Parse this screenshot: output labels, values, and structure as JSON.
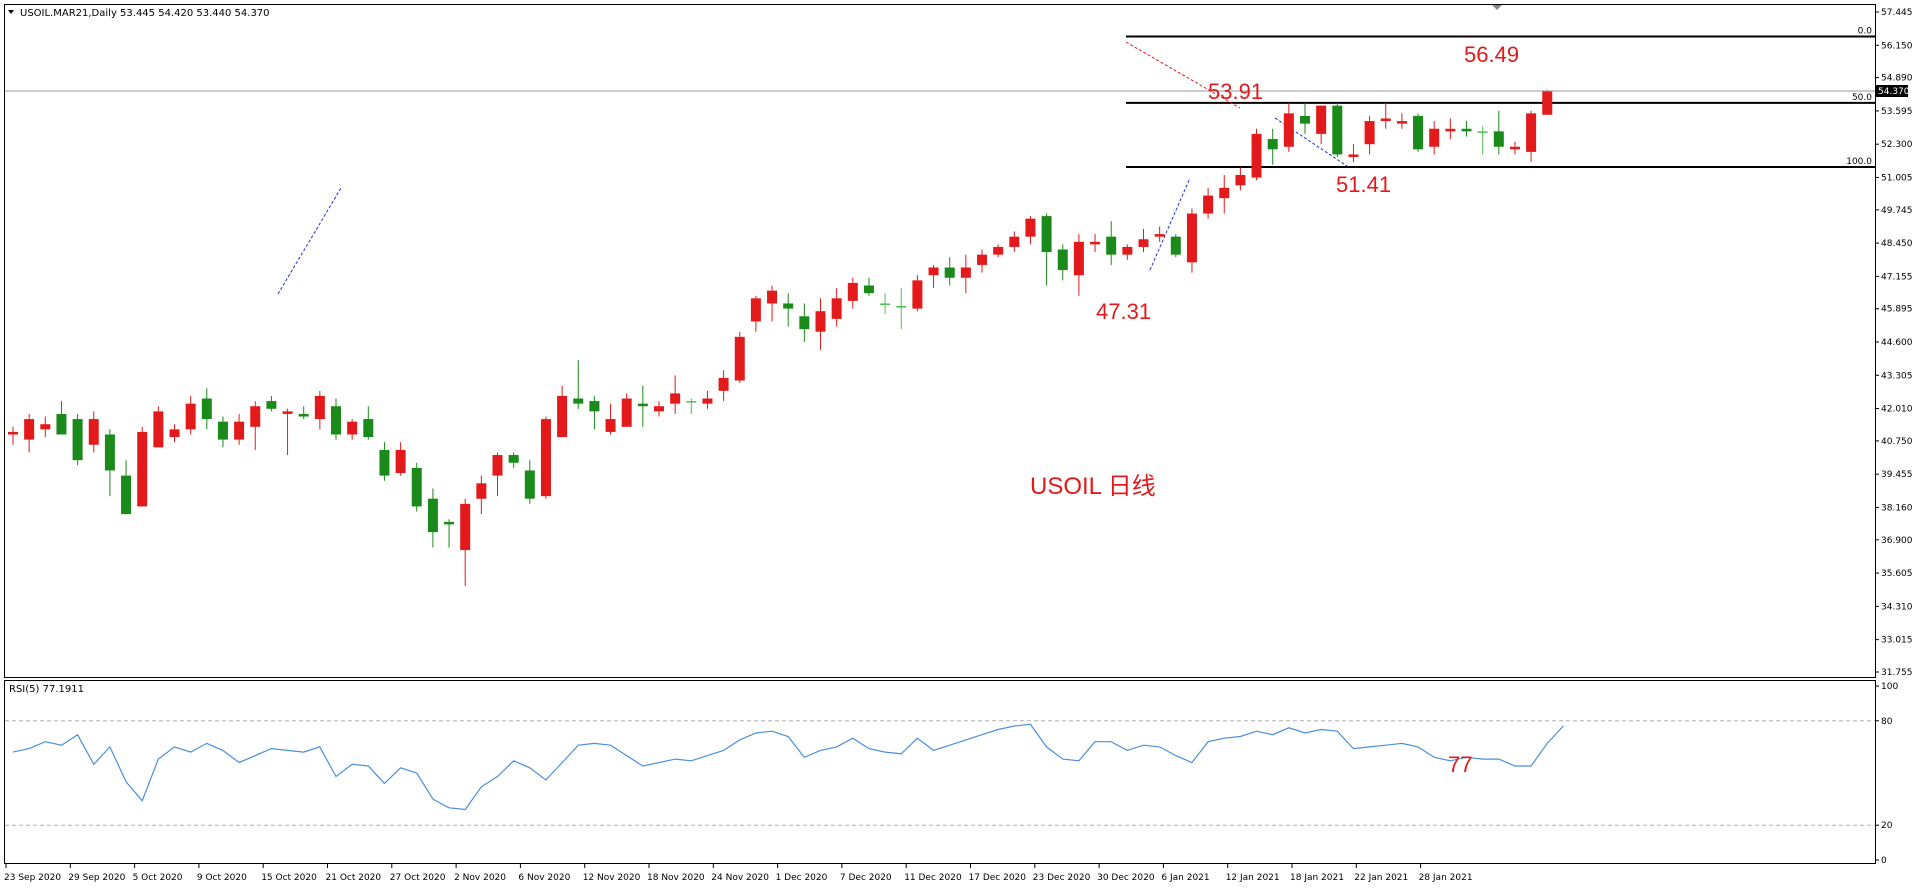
{
  "header": {
    "symbol_line": "USOIL.MAR21,Daily  53.445 54.420 53.440 54.370",
    "rsi_label": "RSI(5) 77.1911"
  },
  "center_label": "USOIL 日线",
  "colors": {
    "bull": "#e31a1c",
    "bear": "#1a8a1a",
    "doji": "#55bb55",
    "rsi": "#4a90d9",
    "annot": "#e31a1c",
    "fib": "#000000"
  },
  "price_axis": {
    "ticks": [
      "57.445",
      "56.150",
      "54.890",
      "53.595",
      "52.300",
      "51.005",
      "49.745",
      "48.450",
      "47.155",
      "45.895",
      "44.600",
      "43.305",
      "42.010",
      "40.750",
      "39.455",
      "38.160",
      "36.900",
      "35.605",
      "34.310",
      "33.015",
      "31.755"
    ],
    "current_price": "54.370"
  },
  "rsi_axis": {
    "ticks": [
      "100",
      "80",
      "20",
      "0"
    ]
  },
  "date_labels": [
    "23 Sep 2020",
    "29 Sep 2020",
    "5 Oct 2020",
    "9 Oct 2020",
    "15 Oct 2020",
    "21 Oct 2020",
    "27 Oct 2020",
    "2 Nov 2020",
    "6 Nov 2020",
    "12 Nov 2020",
    "18 Nov 2020",
    "24 Nov 2020",
    "1 Dec 2020",
    "7 Dec 2020",
    "11 Dec 2020",
    "17 Dec 2020",
    "23 Dec 2020",
    "30 Dec 2020",
    "6 Jan 2021",
    "12 Jan 2021",
    "18 Jan 2021",
    "22 Jan 2021",
    "28 Jan 2021"
  ],
  "fib_levels": [
    {
      "label": "0.0",
      "price": 56.49
    },
    {
      "label": "50.0",
      "price": 53.91
    },
    {
      "label": "100.0",
      "price": 51.41
    }
  ],
  "annotations": [
    {
      "text": "56.49"
    },
    {
      "text": "53.91"
    },
    {
      "text": "51.41"
    },
    {
      "text": "47.31"
    },
    {
      "text": "77"
    }
  ],
  "chart_data": {
    "type": "candlestick",
    "price_range": [
      31.755,
      57.445
    ],
    "rsi_range": [
      0,
      100
    ],
    "candles": [
      {
        "o": 41.0,
        "h": 41.3,
        "l": 40.6,
        "c": 41.1
      },
      {
        "o": 40.8,
        "h": 41.8,
        "l": 40.3,
        "c": 41.6
      },
      {
        "o": 41.2,
        "h": 41.7,
        "l": 40.9,
        "c": 41.4
      },
      {
        "o": 41.8,
        "h": 42.3,
        "l": 41.0,
        "c": 41.0
      },
      {
        "o": 41.6,
        "h": 41.8,
        "l": 39.8,
        "c": 40.0
      },
      {
        "o": 40.6,
        "h": 41.9,
        "l": 40.3,
        "c": 41.6
      },
      {
        "o": 41.0,
        "h": 41.2,
        "l": 38.6,
        "c": 39.6
      },
      {
        "o": 39.4,
        "h": 40.0,
        "l": 37.9,
        "c": 37.9
      },
      {
        "o": 38.2,
        "h": 41.3,
        "l": 38.2,
        "c": 41.1
      },
      {
        "o": 40.5,
        "h": 42.1,
        "l": 40.5,
        "c": 41.9
      },
      {
        "o": 40.9,
        "h": 41.4,
        "l": 40.7,
        "c": 41.2
      },
      {
        "o": 41.2,
        "h": 42.5,
        "l": 41.0,
        "c": 42.2
      },
      {
        "o": 42.4,
        "h": 42.8,
        "l": 41.2,
        "c": 41.6
      },
      {
        "o": 41.5,
        "h": 41.7,
        "l": 40.5,
        "c": 40.8
      },
      {
        "o": 40.8,
        "h": 41.8,
        "l": 40.6,
        "c": 41.5
      },
      {
        "o": 41.3,
        "h": 42.3,
        "l": 40.4,
        "c": 42.1
      },
      {
        "o": 42.3,
        "h": 42.5,
        "l": 41.9,
        "c": 42.0
      },
      {
        "o": 41.8,
        "h": 42.0,
        "l": 40.2,
        "c": 41.9
      },
      {
        "o": 41.8,
        "h": 42.1,
        "l": 41.6,
        "c": 41.7
      },
      {
        "o": 41.6,
        "h": 42.7,
        "l": 41.2,
        "c": 42.5
      },
      {
        "o": 42.1,
        "h": 42.4,
        "l": 40.8,
        "c": 41.0
      },
      {
        "o": 41.0,
        "h": 41.6,
        "l": 40.8,
        "c": 41.5
      },
      {
        "o": 41.6,
        "h": 42.1,
        "l": 40.8,
        "c": 40.9
      },
      {
        "o": 40.4,
        "h": 40.7,
        "l": 39.2,
        "c": 39.4
      },
      {
        "o": 39.5,
        "h": 40.7,
        "l": 39.4,
        "c": 40.4
      },
      {
        "o": 39.7,
        "h": 39.9,
        "l": 38.0,
        "c": 38.2
      },
      {
        "o": 38.5,
        "h": 38.9,
        "l": 36.6,
        "c": 37.2
      },
      {
        "o": 37.6,
        "h": 37.7,
        "l": 36.6,
        "c": 37.5
      },
      {
        "o": 36.5,
        "h": 38.5,
        "l": 35.1,
        "c": 38.3
      },
      {
        "o": 38.5,
        "h": 39.4,
        "l": 37.9,
        "c": 39.1
      },
      {
        "o": 39.4,
        "h": 40.3,
        "l": 38.6,
        "c": 40.2
      },
      {
        "o": 40.2,
        "h": 40.3,
        "l": 39.7,
        "c": 39.9
      },
      {
        "o": 39.6,
        "h": 40.0,
        "l": 38.3,
        "c": 38.5
      },
      {
        "o": 38.6,
        "h": 41.7,
        "l": 38.5,
        "c": 41.6
      },
      {
        "o": 40.9,
        "h": 42.9,
        "l": 40.9,
        "c": 42.5
      },
      {
        "o": 42.4,
        "h": 43.9,
        "l": 42.0,
        "c": 42.2
      },
      {
        "o": 42.3,
        "h": 42.5,
        "l": 41.2,
        "c": 41.9
      },
      {
        "o": 41.1,
        "h": 42.2,
        "l": 41.0,
        "c": 41.6
      },
      {
        "o": 41.3,
        "h": 42.6,
        "l": 41.3,
        "c": 42.4
      },
      {
        "o": 42.2,
        "h": 42.9,
        "l": 41.3,
        "c": 42.1
      },
      {
        "o": 41.9,
        "h": 42.3,
        "l": 41.7,
        "c": 42.1
      },
      {
        "o": 42.2,
        "h": 43.3,
        "l": 41.8,
        "c": 42.6
      },
      {
        "o": 42.3,
        "h": 42.4,
        "l": 41.8,
        "c": 42.3
      },
      {
        "o": 42.2,
        "h": 42.7,
        "l": 42.0,
        "c": 42.4
      },
      {
        "o": 42.7,
        "h": 43.5,
        "l": 42.3,
        "c": 43.2
      },
      {
        "o": 43.1,
        "h": 45.0,
        "l": 43.0,
        "c": 44.8
      },
      {
        "o": 45.4,
        "h": 46.4,
        "l": 45.0,
        "c": 46.3
      },
      {
        "o": 46.1,
        "h": 46.8,
        "l": 45.4,
        "c": 46.6
      },
      {
        "o": 46.1,
        "h": 46.5,
        "l": 45.2,
        "c": 45.9
      },
      {
        "o": 45.6,
        "h": 46.1,
        "l": 44.6,
        "c": 45.1
      },
      {
        "o": 45.0,
        "h": 46.3,
        "l": 44.3,
        "c": 45.8
      },
      {
        "o": 45.5,
        "h": 46.7,
        "l": 45.2,
        "c": 46.3
      },
      {
        "o": 46.2,
        "h": 47.1,
        "l": 45.9,
        "c": 46.9
      },
      {
        "o": 46.8,
        "h": 47.1,
        "l": 46.4,
        "c": 46.5
      },
      {
        "o": 46.1,
        "h": 46.5,
        "l": 45.7,
        "c": 46.1
      },
      {
        "o": 46.0,
        "h": 46.7,
        "l": 45.1,
        "c": 46.0
      },
      {
        "o": 45.9,
        "h": 47.2,
        "l": 45.8,
        "c": 47.0
      },
      {
        "o": 47.2,
        "h": 47.6,
        "l": 46.7,
        "c": 47.5
      },
      {
        "o": 47.5,
        "h": 47.9,
        "l": 46.8,
        "c": 47.1
      },
      {
        "o": 47.1,
        "h": 48.0,
        "l": 46.5,
        "c": 47.5
      },
      {
        "o": 47.6,
        "h": 48.2,
        "l": 47.3,
        "c": 48.0
      },
      {
        "o": 48.0,
        "h": 48.4,
        "l": 47.9,
        "c": 48.3
      },
      {
        "o": 48.3,
        "h": 48.9,
        "l": 48.1,
        "c": 48.7
      },
      {
        "o": 48.7,
        "h": 49.5,
        "l": 48.4,
        "c": 49.4
      },
      {
        "o": 49.5,
        "h": 49.6,
        "l": 46.8,
        "c": 48.1
      },
      {
        "o": 48.2,
        "h": 48.4,
        "l": 47.0,
        "c": 47.4
      },
      {
        "o": 47.2,
        "h": 48.8,
        "l": 46.4,
        "c": 48.5
      },
      {
        "o": 48.4,
        "h": 48.8,
        "l": 48.1,
        "c": 48.5
      },
      {
        "o": 48.7,
        "h": 49.3,
        "l": 47.6,
        "c": 48.0
      },
      {
        "o": 48.0,
        "h": 48.4,
        "l": 47.8,
        "c": 48.3
      },
      {
        "o": 48.3,
        "h": 49.0,
        "l": 48.1,
        "c": 48.6
      },
      {
        "o": 48.7,
        "h": 49.1,
        "l": 48.5,
        "c": 48.8
      },
      {
        "o": 48.7,
        "h": 48.8,
        "l": 47.9,
        "c": 48.0
      },
      {
        "o": 47.7,
        "h": 49.8,
        "l": 47.3,
        "c": 49.6
      },
      {
        "o": 49.6,
        "h": 50.6,
        "l": 49.4,
        "c": 50.3
      },
      {
        "o": 50.2,
        "h": 51.1,
        "l": 49.6,
        "c": 50.6
      },
      {
        "o": 50.7,
        "h": 51.4,
        "l": 50.5,
        "c": 51.1
      },
      {
        "o": 51.0,
        "h": 52.9,
        "l": 50.9,
        "c": 52.7
      },
      {
        "o": 52.5,
        "h": 52.9,
        "l": 51.5,
        "c": 52.1
      },
      {
        "o": 52.2,
        "h": 53.9,
        "l": 52.0,
        "c": 53.5
      },
      {
        "o": 53.4,
        "h": 53.9,
        "l": 52.7,
        "c": 53.1
      },
      {
        "o": 52.7,
        "h": 53.8,
        "l": 52.3,
        "c": 53.8
      },
      {
        "o": 53.8,
        "h": 53.9,
        "l": 51.8,
        "c": 51.9
      },
      {
        "o": 51.8,
        "h": 52.3,
        "l": 51.6,
        "c": 51.9
      },
      {
        "o": 52.3,
        "h": 53.4,
        "l": 51.9,
        "c": 53.2
      },
      {
        "o": 53.2,
        "h": 53.9,
        "l": 52.9,
        "c": 53.3
      },
      {
        "o": 53.1,
        "h": 53.5,
        "l": 52.9,
        "c": 53.2
      },
      {
        "o": 53.4,
        "h": 53.5,
        "l": 52.0,
        "c": 52.1
      },
      {
        "o": 52.2,
        "h": 53.2,
        "l": 51.9,
        "c": 52.9
      },
      {
        "o": 52.8,
        "h": 53.3,
        "l": 52.5,
        "c": 52.9
      },
      {
        "o": 52.9,
        "h": 53.2,
        "l": 52.6,
        "c": 52.8
      },
      {
        "o": 52.8,
        "h": 53.0,
        "l": 51.9,
        "c": 52.8
      },
      {
        "o": 52.8,
        "h": 53.6,
        "l": 51.9,
        "c": 52.2
      },
      {
        "o": 52.1,
        "h": 52.4,
        "l": 51.9,
        "c": 52.2
      },
      {
        "o": 52.0,
        "h": 53.6,
        "l": 51.6,
        "c": 53.5
      },
      {
        "o": 53.445,
        "h": 54.42,
        "l": 53.44,
        "c": 54.37
      }
    ],
    "rsi": [
      62,
      64,
      68,
      66,
      72,
      55,
      65,
      45,
      34,
      58,
      65,
      62,
      67,
      63,
      56,
      60,
      64,
      63,
      62,
      65,
      48,
      55,
      54,
      44,
      53,
      50,
      35,
      30,
      29,
      42,
      48,
      57,
      53,
      46,
      56,
      66,
      67,
      66,
      60,
      54,
      56,
      58,
      57,
      60,
      63,
      69,
      73,
      74,
      71,
      59,
      63,
      65,
      70,
      64,
      62,
      61,
      70,
      63,
      66,
      69,
      72,
      75,
      77,
      78,
      65,
      58,
      57,
      68,
      68,
      63,
      66,
      65,
      60,
      56,
      68,
      70,
      71,
      74,
      72,
      76,
      73,
      75,
      74,
      64,
      65,
      66,
      67,
      65,
      59,
      57,
      59,
      58,
      58,
      54,
      54,
      67,
      77
    ]
  }
}
